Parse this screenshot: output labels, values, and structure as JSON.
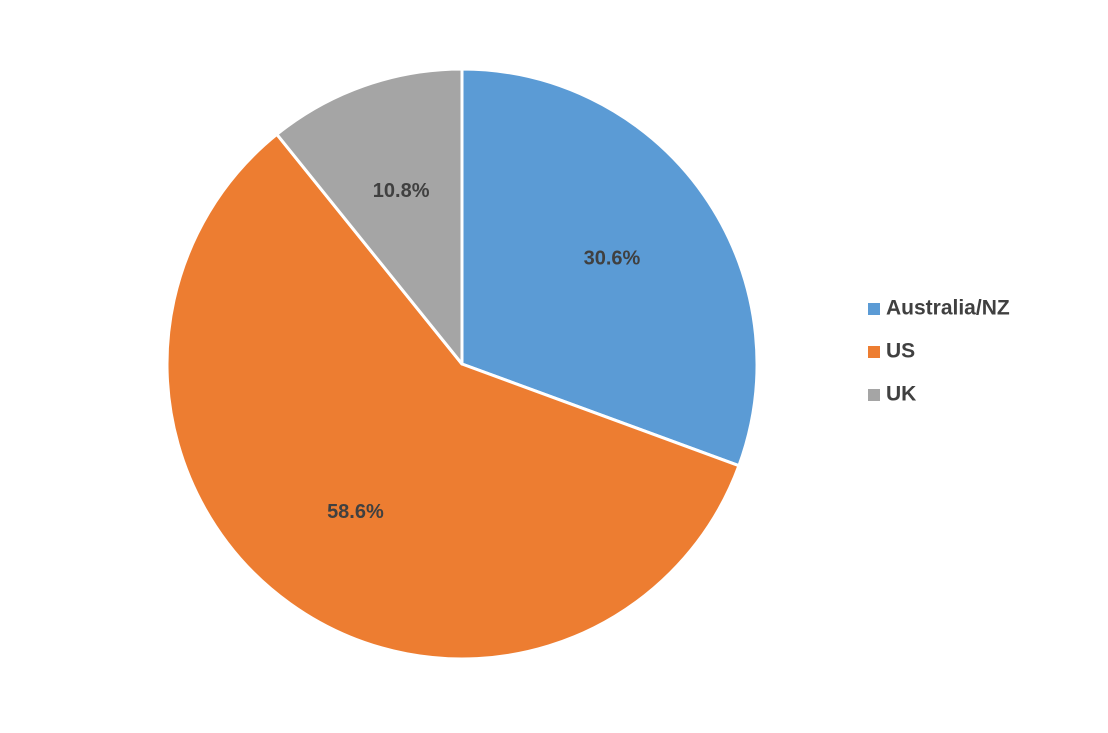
{
  "chart_data": {
    "type": "pie",
    "categories": [
      "Australia/NZ",
      "US",
      "UK"
    ],
    "values": [
      30.6,
      58.6,
      10.8
    ],
    "data_labels": [
      "30.6%",
      "58.6%",
      "10.8%"
    ],
    "colors": [
      "#5B9BD5",
      "#ED7D31",
      "#A5A5A5"
    ],
    "start_angle": "12 o'clock",
    "direction": "clockwise",
    "legend_position": "right",
    "title": ""
  }
}
